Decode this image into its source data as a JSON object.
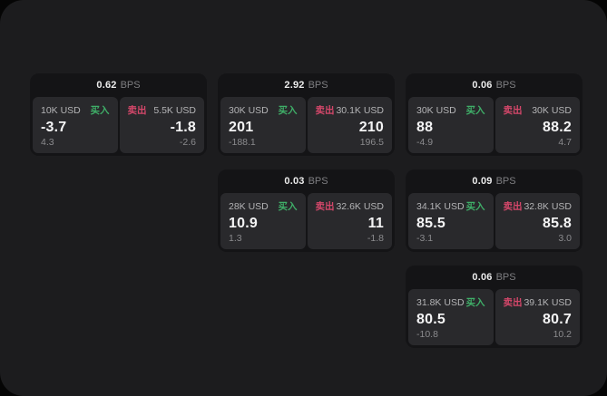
{
  "labels": {
    "bps_unit": "BPS",
    "buy": "买入",
    "sell": "卖出"
  },
  "colors": {
    "buy": "#3fae68",
    "sell": "#d4476a"
  },
  "cards": [
    {
      "row": 1,
      "col": 1,
      "bps": "0.62",
      "buy": {
        "amount": "10K USD",
        "value": "-3.7",
        "sub": "4.3"
      },
      "sell": {
        "amount": "5.5K USD",
        "value": "-1.8",
        "sub": "-2.6"
      }
    },
    {
      "row": 1,
      "col": 2,
      "bps": "2.92",
      "buy": {
        "amount": "30K USD",
        "value": "201",
        "sub": "-188.1"
      },
      "sell": {
        "amount": "30.1K USD",
        "value": "210",
        "sub": "196.5"
      }
    },
    {
      "row": 1,
      "col": 3,
      "bps": "0.06",
      "buy": {
        "amount": "30K USD",
        "value": "88",
        "sub": "-4.9"
      },
      "sell": {
        "amount": "30K USD",
        "value": "88.2",
        "sub": "4.7"
      }
    },
    {
      "row": 2,
      "col": 2,
      "bps": "0.03",
      "buy": {
        "amount": "28K USD",
        "value": "10.9",
        "sub": "1.3"
      },
      "sell": {
        "amount": "32.6K USD",
        "value": "11",
        "sub": "-1.8"
      }
    },
    {
      "row": 2,
      "col": 3,
      "bps": "0.09",
      "buy": {
        "amount": "34.1K USD",
        "value": "85.5",
        "sub": "-3.1"
      },
      "sell": {
        "amount": "32.8K USD",
        "value": "85.8",
        "sub": "3.0"
      }
    },
    {
      "row": 3,
      "col": 3,
      "bps": "0.06",
      "buy": {
        "amount": "31.8K USD",
        "value": "80.5",
        "sub": "-10.8"
      },
      "sell": {
        "amount": "39.1K USD",
        "value": "80.7",
        "sub": "10.2"
      }
    }
  ]
}
